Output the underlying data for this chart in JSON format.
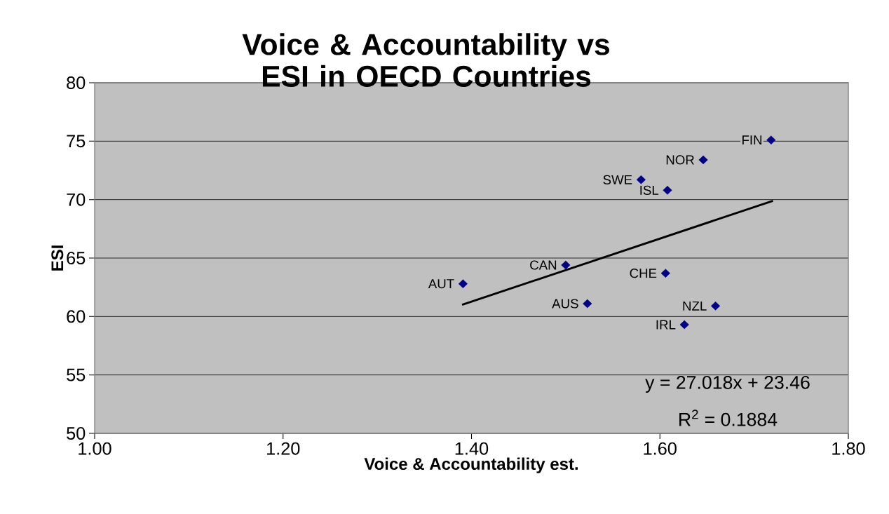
{
  "chart_data": {
    "type": "scatter",
    "title": "Voice & Accountability vs ESI in OECD Countries",
    "xlabel": "Voice & Accountability est.",
    "ylabel": "ESI",
    "xlim": [
      1.0,
      1.8
    ],
    "ylim": [
      50,
      80
    ],
    "xticks": [
      {
        "value": 1.0,
        "label": "1.00"
      },
      {
        "value": 1.2,
        "label": "1.20"
      },
      {
        "value": 1.4,
        "label": "1.40"
      },
      {
        "value": 1.6,
        "label": "1.60"
      },
      {
        "value": 1.8,
        "label": "1.80"
      }
    ],
    "yticks": [
      50,
      55,
      60,
      65,
      70,
      75,
      80
    ],
    "grid": "y",
    "series": [
      {
        "color": "#000080",
        "marker": "diamond",
        "x": [
          1.718,
          1.646,
          1.58,
          1.608,
          1.5,
          1.606,
          1.391,
          1.523,
          1.659,
          1.626
        ],
        "values": [
          75.1,
          73.4,
          71.7,
          70.8,
          64.4,
          63.7,
          62.8,
          61.1,
          60.9,
          59.3
        ]
      },
      {
        "type": "line",
        "color": "#000000",
        "marker": "none",
        "line_style": "solid",
        "x": [
          1.39,
          1.72
        ],
        "values": [
          61.0,
          69.9
        ]
      }
    ],
    "annotations": [
      {
        "text": "FIN",
        "x": 1.718,
        "y": 75.1
      },
      {
        "text": "NOR",
        "x": 1.646,
        "y": 73.4
      },
      {
        "text": "SWE",
        "x": 1.58,
        "y": 71.7
      },
      {
        "text": "ISL",
        "x": 1.608,
        "y": 70.8
      },
      {
        "text": "CAN",
        "x": 1.5,
        "y": 64.4
      },
      {
        "text": "CHE",
        "x": 1.606,
        "y": 63.7
      },
      {
        "text": "AUT",
        "x": 1.391,
        "y": 62.8
      },
      {
        "text": "AUS",
        "x": 1.523,
        "y": 61.1
      },
      {
        "text": "NZL",
        "x": 1.659,
        "y": 60.9
      },
      {
        "text": "IRL",
        "x": 1.626,
        "y": 59.3
      },
      "y = 27.018x + 23.46",
      "R$^{2}$ = 0.1884"
    ]
  }
}
